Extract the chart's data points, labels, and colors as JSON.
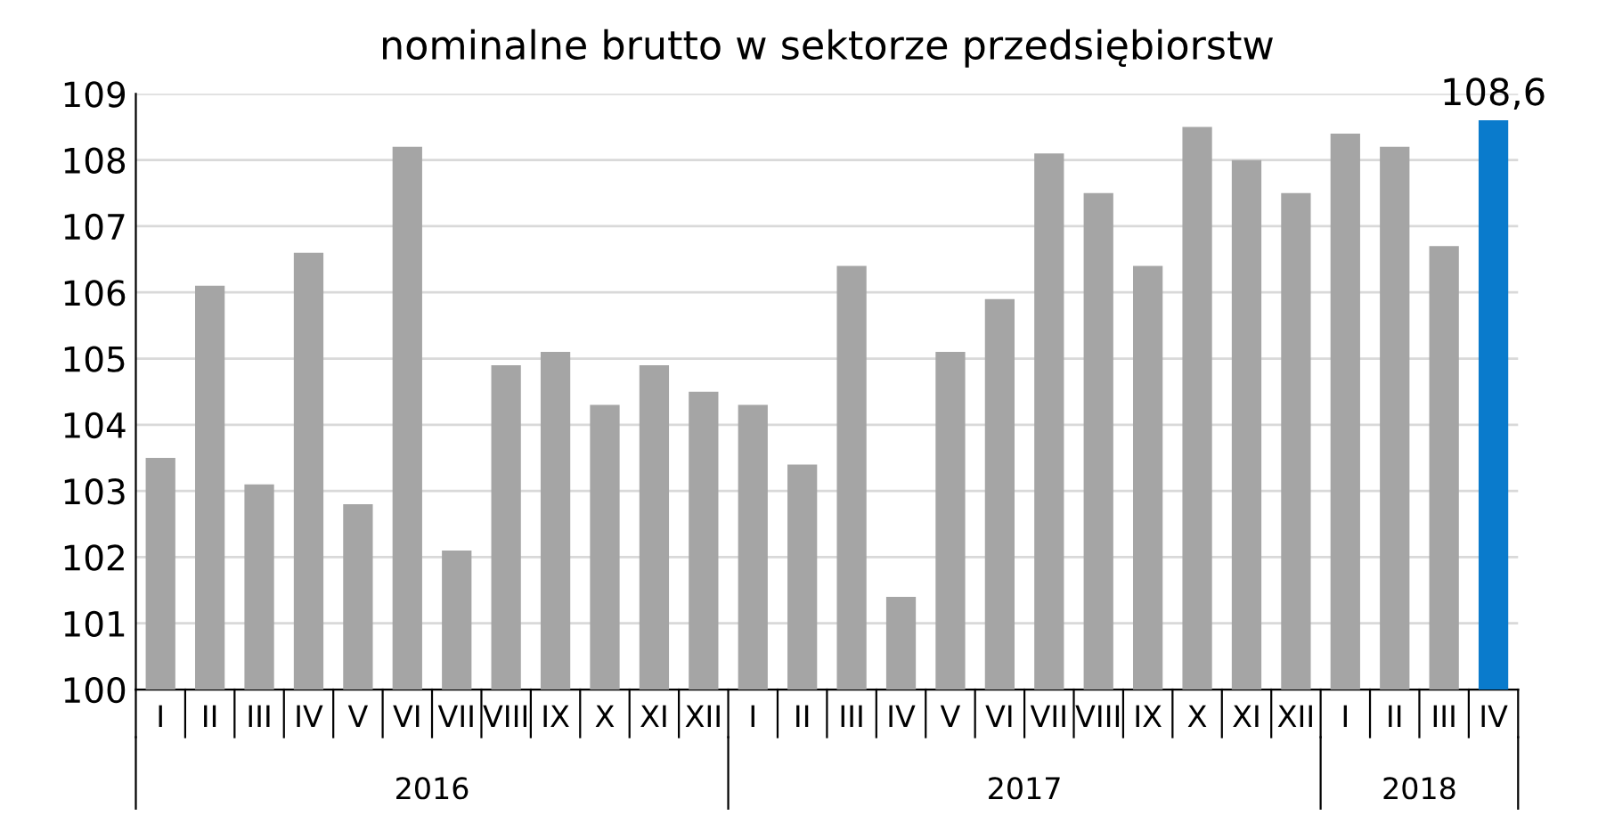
{
  "chart_data": {
    "type": "bar",
    "title": "nominalne brutto w sektorze przedsiębiorstw",
    "categories": [
      "I",
      "II",
      "III",
      "IV",
      "V",
      "VI",
      "VII",
      "VIII",
      "IX",
      "X",
      "XI",
      "XII",
      "I",
      "II",
      "III",
      "IV",
      "V",
      "VI",
      "VII",
      "VIII",
      "IX",
      "X",
      "XI",
      "XII",
      "I",
      "II",
      "III",
      "IV"
    ],
    "values": [
      103.5,
      106.1,
      103.1,
      106.6,
      102.8,
      108.2,
      102.1,
      104.9,
      105.1,
      104.3,
      104.9,
      104.5,
      104.3,
      103.4,
      106.4,
      101.4,
      105.1,
      105.9,
      108.1,
      107.5,
      106.4,
      108.5,
      108.0,
      107.5,
      108.4,
      108.2,
      106.7,
      108.6
    ],
    "colors": [
      "#a5a5a5",
      "#a5a5a5",
      "#a5a5a5",
      "#a5a5a5",
      "#a5a5a5",
      "#a5a5a5",
      "#a5a5a5",
      "#a5a5a5",
      "#a5a5a5",
      "#a5a5a5",
      "#a5a5a5",
      "#a5a5a5",
      "#a5a5a5",
      "#a5a5a5",
      "#a5a5a5",
      "#a5a5a5",
      "#a5a5a5",
      "#a5a5a5",
      "#a5a5a5",
      "#a5a5a5",
      "#a5a5a5",
      "#a5a5a5",
      "#a5a5a5",
      "#a5a5a5",
      "#a5a5a5",
      "#a5a5a5",
      "#a5a5a5",
      "#0a7bcc"
    ],
    "value_labels": [
      null,
      null,
      null,
      null,
      null,
      null,
      null,
      null,
      null,
      null,
      null,
      null,
      null,
      null,
      null,
      null,
      null,
      null,
      null,
      null,
      null,
      null,
      null,
      null,
      null,
      null,
      null,
      "108,6"
    ],
    "annotations": [
      "2016",
      "2017",
      "2018"
    ],
    "ylim": [
      100,
      109
    ],
    "yticks": [
      100,
      101,
      102,
      103,
      104,
      105,
      106,
      107,
      108,
      109
    ],
    "grid": "y"
  }
}
